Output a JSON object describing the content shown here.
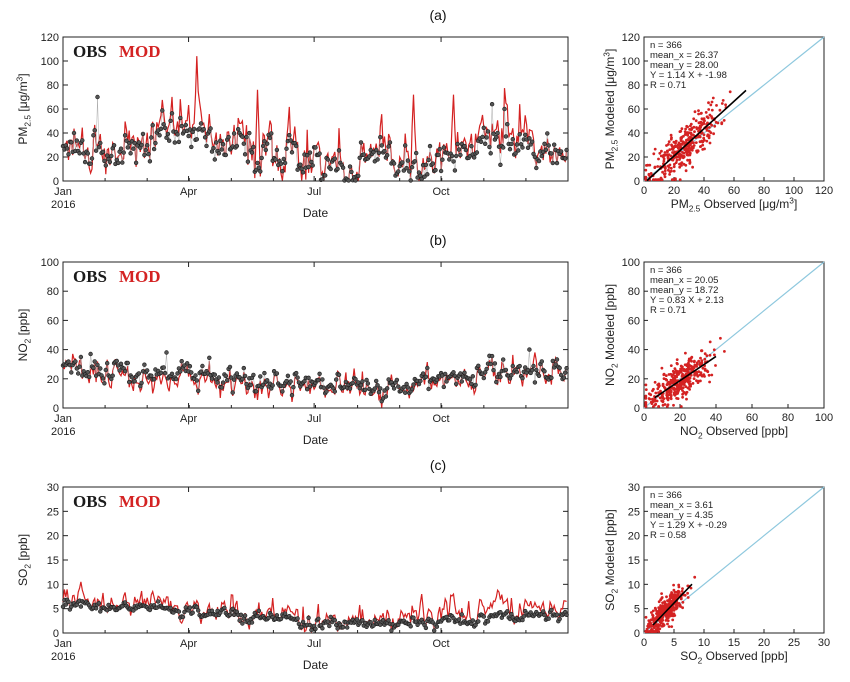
{
  "figure": {
    "panel_labels": [
      "(a)",
      "(b)",
      "(c)"
    ]
  },
  "colors": {
    "obs": "#1a1a1a",
    "mod": "#d42222",
    "one_to_one": "#8ec8de",
    "fit": "#000000",
    "axis": "#222222"
  },
  "chart_data": [
    {
      "id": "a_ts",
      "type": "line",
      "legend": [
        "OBS",
        "MOD"
      ],
      "xlabel": "Date",
      "ylabel": "PM2.5 [μg/m³]",
      "ylabel_parts": [
        "PM",
        "2.5",
        " [μg/m",
        "3",
        "]"
      ],
      "xlim": [
        0,
        366
      ],
      "ylim": [
        0,
        120
      ],
      "yticks": [
        0,
        20,
        40,
        60,
        80,
        100,
        120
      ],
      "xticks": [
        {
          "day": 0,
          "label": "Jan"
        },
        {
          "day": 91,
          "label": "Apr"
        },
        {
          "day": 182,
          "label": "Jul"
        },
        {
          "day": 274,
          "label": "Oct"
        }
      ],
      "year_label": "2016",
      "series": [
        {
          "name": "OBS",
          "x": [
            0,
            14,
            28,
            42,
            56,
            70,
            84,
            98,
            112,
            126,
            140,
            154,
            168,
            182,
            196,
            210,
            224,
            238,
            252,
            266,
            280,
            294,
            308,
            322,
            336,
            350,
            365
          ],
          "values": [
            28,
            33,
            30,
            22,
            26,
            36,
            40,
            38,
            30,
            28,
            24,
            22,
            20,
            16,
            12,
            12,
            16,
            14,
            12,
            18,
            24,
            26,
            30,
            28,
            26,
            24,
            26
          ]
        },
        {
          "name": "MOD",
          "x": [
            0,
            14,
            28,
            42,
            56,
            70,
            84,
            98,
            112,
            126,
            140,
            154,
            168,
            182,
            196,
            210,
            224,
            238,
            252,
            266,
            280,
            294,
            308,
            322,
            336,
            350,
            365
          ],
          "values": [
            30,
            35,
            32,
            24,
            30,
            40,
            44,
            42,
            32,
            30,
            26,
            24,
            22,
            18,
            14,
            13,
            18,
            16,
            14,
            22,
            28,
            30,
            34,
            32,
            30,
            26,
            28
          ]
        }
      ],
      "peaks": [
        {
          "series": "MOD",
          "x": 97,
          "y": 104
        },
        {
          "series": "MOD",
          "x": 141,
          "y": 76
        },
        {
          "series": "MOD",
          "x": 254,
          "y": 72
        },
        {
          "series": "MOD",
          "x": 283,
          "y": 72
        },
        {
          "series": "OBS",
          "x": 25,
          "y": 70
        },
        {
          "series": "OBS",
          "x": 311,
          "y": 64
        },
        {
          "series": "OBS",
          "x": 320,
          "y": 60
        }
      ]
    },
    {
      "id": "a_sc",
      "type": "scatter",
      "xlabel": "PM2.5 Observed [μg/m³]",
      "ylabel": "PM2.5 Modeled [μg/m³]",
      "xlabel_parts": [
        "PM",
        "2.5",
        " Observed [μg/m",
        "3",
        "]"
      ],
      "ylabel_parts": [
        "PM",
        "2.5",
        " Modeled [μg/m",
        "3",
        "]"
      ],
      "xlim": [
        0,
        120
      ],
      "ylim": [
        0,
        120
      ],
      "ticks": [
        0,
        20,
        40,
        60,
        80,
        100,
        120
      ],
      "stats": [
        "n = 366",
        "mean_x = 26.37",
        "mean_y = 28.00",
        "Y = 1.14 X + -1.98",
        "R = 0.71"
      ],
      "fit": {
        "slope": 1.14,
        "intercept": -1.98,
        "x_range": [
          2,
          68
        ]
      },
      "mean_x": 26.37,
      "mean_y": 28.0,
      "n_points": 366
    },
    {
      "id": "b_ts",
      "type": "line",
      "legend": [
        "OBS",
        "MOD"
      ],
      "xlabel": "Date",
      "ylabel": "NO2 [ppb]",
      "ylabel_parts": [
        "NO",
        "2",
        " [ppb]",
        "",
        ""
      ],
      "xlim": [
        0,
        366
      ],
      "ylim": [
        0,
        100
      ],
      "yticks": [
        0,
        20,
        40,
        60,
        80,
        100
      ],
      "xticks": [
        {
          "day": 0,
          "label": "Jan"
        },
        {
          "day": 91,
          "label": "Apr"
        },
        {
          "day": 182,
          "label": "Jul"
        },
        {
          "day": 274,
          "label": "Oct"
        }
      ],
      "year_label": "2016",
      "series": [
        {
          "name": "OBS",
          "x": [
            0,
            30,
            60,
            90,
            120,
            150,
            180,
            210,
            240,
            270,
            300,
            330,
            365
          ],
          "values": [
            26,
            26,
            24,
            22,
            20,
            18,
            16,
            14,
            14,
            18,
            22,
            26,
            24
          ]
        },
        {
          "name": "MOD",
          "x": [
            0,
            30,
            60,
            90,
            120,
            150,
            180,
            210,
            240,
            270,
            300,
            330,
            365
          ],
          "values": [
            25,
            24,
            20,
            18,
            16,
            15,
            14,
            13,
            13,
            16,
            20,
            24,
            24
          ]
        }
      ],
      "peaks": [
        {
          "series": "OBS",
          "x": 20,
          "y": 37
        },
        {
          "series": "OBS",
          "x": 75,
          "y": 38
        },
        {
          "series": "OBS",
          "x": 338,
          "y": 40
        },
        {
          "series": "MOD",
          "x": 342,
          "y": 38
        }
      ]
    },
    {
      "id": "b_sc",
      "type": "scatter",
      "xlabel": "NO2 Observed [ppb]",
      "ylabel": "NO2 Modeled [ppb]",
      "xlabel_parts": [
        "NO",
        "2",
        " Observed [ppb]",
        "",
        ""
      ],
      "ylabel_parts": [
        "NO",
        "2",
        " Modeled [ppb]",
        "",
        ""
      ],
      "xlim": [
        0,
        100
      ],
      "ylim": [
        0,
        100
      ],
      "ticks": [
        0,
        20,
        40,
        60,
        80,
        100
      ],
      "stats": [
        "n = 366",
        "mean_x = 20.05",
        "mean_y = 18.72",
        "Y = 0.83 X + 2.13",
        "R = 0.71"
      ],
      "fit": {
        "slope": 0.83,
        "intercept": 2.13,
        "x_range": [
          6,
          40
        ]
      },
      "mean_x": 20.05,
      "mean_y": 18.72,
      "n_points": 366
    },
    {
      "id": "c_ts",
      "type": "line",
      "legend": [
        "OBS",
        "MOD"
      ],
      "xlabel": "Date",
      "ylabel": "SO2 [ppb]",
      "ylabel_parts": [
        "SO",
        "2",
        " [ppb]",
        "",
        ""
      ],
      "xlim": [
        0,
        366
      ],
      "ylim": [
        0,
        30
      ],
      "yticks": [
        0,
        5,
        10,
        15,
        20,
        25,
        30
      ],
      "xticks": [
        {
          "day": 0,
          "label": "Jan"
        },
        {
          "day": 91,
          "label": "Apr"
        },
        {
          "day": 182,
          "label": "Jul"
        },
        {
          "day": 274,
          "label": "Oct"
        }
      ],
      "year_label": "2016",
      "series": [
        {
          "name": "OBS",
          "x": [
            0,
            30,
            60,
            90,
            120,
            150,
            180,
            210,
            240,
            270,
            300,
            330,
            365
          ],
          "values": [
            5.5,
            5.5,
            5,
            4.5,
            4,
            3,
            2,
            2,
            2,
            2.5,
            3,
            3.5,
            3.5
          ]
        },
        {
          "name": "MOD",
          "x": [
            0,
            30,
            60,
            90,
            120,
            150,
            180,
            210,
            240,
            270,
            300,
            330,
            365
          ],
          "values": [
            6,
            6,
            5.5,
            5,
            4.5,
            3.5,
            2.5,
            2.5,
            3,
            4,
            5,
            5,
            4.5
          ]
        }
      ],
      "peaks": [
        {
          "series": "MOD",
          "x": 13,
          "y": 10.5
        },
        {
          "series": "MOD",
          "x": 65,
          "y": 8.5
        },
        {
          "series": "MOD",
          "x": 260,
          "y": 8
        },
        {
          "series": "MOD",
          "x": 283,
          "y": 8
        },
        {
          "series": "MOD",
          "x": 315,
          "y": 8.8
        }
      ]
    },
    {
      "id": "c_sc",
      "type": "scatter",
      "xlabel": "SO2 Observed [ppb]",
      "ylabel": "SO2 Modeled [ppb]",
      "xlabel_parts": [
        "SO",
        "2",
        " Observed [ppb]",
        "",
        ""
      ],
      "ylabel_parts": [
        "SO",
        "2",
        " Modeled [ppb]",
        "",
        ""
      ],
      "xlim": [
        0,
        30
      ],
      "ylim": [
        0,
        30
      ],
      "ticks": [
        0,
        5,
        10,
        15,
        20,
        25,
        30
      ],
      "stats": [
        "n = 366",
        "mean_x = 3.61",
        "mean_y = 4.35",
        "Y = 1.29 X + -0.29",
        "R = 0.58"
      ],
      "fit": {
        "slope": 1.29,
        "intercept": -0.29,
        "x_range": [
          1.5,
          8
        ]
      },
      "mean_x": 3.61,
      "mean_y": 4.35,
      "n_points": 366
    }
  ]
}
